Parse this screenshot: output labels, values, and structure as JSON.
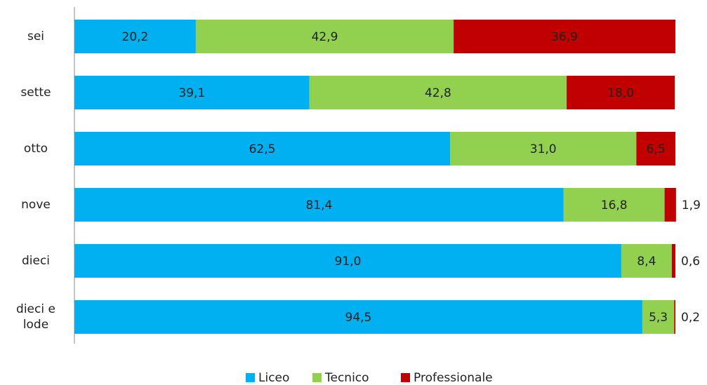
{
  "chart_data": {
    "type": "bar",
    "orientation": "horizontal",
    "stacked": true,
    "categories": [
      "sei",
      "sette",
      "otto",
      "nove",
      "dieci",
      "dieci e lode"
    ],
    "xlim": [
      0,
      100
    ],
    "legend": "bottom",
    "series": [
      {
        "name": "Liceo",
        "color": "#00b0f0",
        "values": [
          20.2,
          39.1,
          62.5,
          81.4,
          91.0,
          94.5
        ],
        "value_labels": [
          "20,2",
          "39,1",
          "62,5",
          "81,4",
          "91,0",
          "94,5"
        ]
      },
      {
        "name": "Tecnico",
        "color": "#92d050",
        "values": [
          42.9,
          42.8,
          31.0,
          16.8,
          8.4,
          5.3
        ],
        "value_labels": [
          "42,9",
          "42,8",
          "31,0",
          "16,8",
          "8,4",
          "5,3"
        ]
      },
      {
        "name": "Professionale",
        "color": "#c00000",
        "values": [
          36.9,
          18.0,
          6.5,
          1.9,
          0.6,
          0.2
        ],
        "value_labels": [
          "36,9",
          "18,0",
          "6,5",
          "1,9",
          "0,6",
          "0,2"
        ]
      }
    ]
  }
}
